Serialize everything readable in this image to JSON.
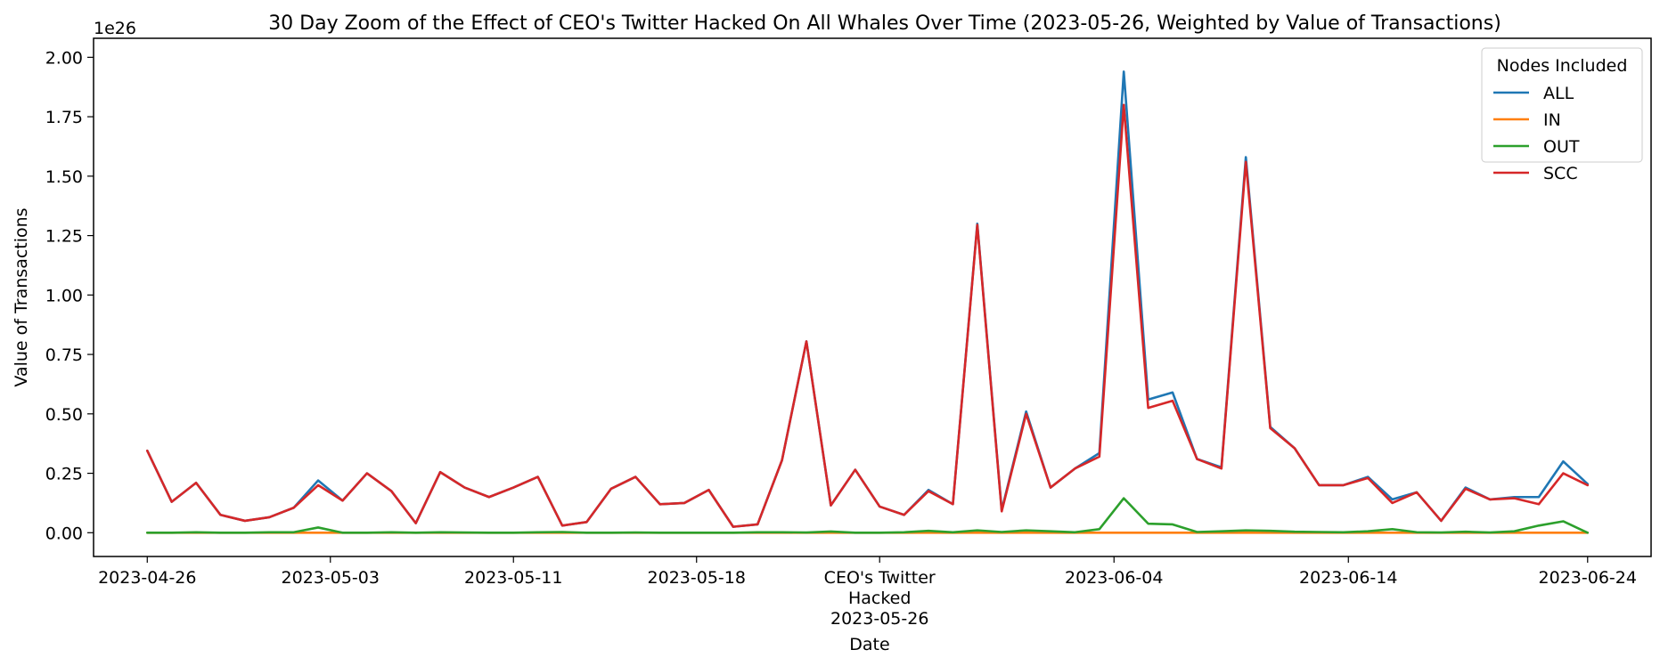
{
  "chart_data": {
    "type": "line",
    "title": "30 Day Zoom of the Effect of CEO's Twitter Hacked On All Whales Over Time (2023-05-26, Weighted by Value of Transactions)",
    "xlabel": "Date",
    "ylabel": "Value of Transactions",
    "y_scale_label": "1e26",
    "y_unit_note": "values in units of 1e26",
    "ylim": [
      -0.1,
      2.08
    ],
    "yticks": [
      0.0,
      0.25,
      0.5,
      0.75,
      1.0,
      1.25,
      1.5,
      1.75,
      2.0
    ],
    "ytick_labels": [
      "0.00",
      "0.25",
      "0.50",
      "0.75",
      "1.00",
      "1.25",
      "1.50",
      "1.75",
      "2.00"
    ],
    "x_start_date": "2023-04-26",
    "x_end_date": "2023-06-24",
    "xlim_days": [
      -2.2,
      61.6
    ],
    "xticks": [
      {
        "day": 0,
        "label": "2023-04-26"
      },
      {
        "day": 7.5,
        "label": "2023-05-03"
      },
      {
        "day": 15,
        "label": "2023-05-11"
      },
      {
        "day": 22.5,
        "label": "2023-05-18"
      },
      {
        "day": 30,
        "label": "CEO's Twitter\nHacked\n2023-05-26"
      },
      {
        "day": 39.6,
        "label": "2023-06-04"
      },
      {
        "day": 49.2,
        "label": "2023-06-14"
      },
      {
        "day": 59,
        "label": "2023-06-24"
      }
    ],
    "legend": {
      "title": "Nodes Included",
      "position": "top-right"
    },
    "series": [
      {
        "name": "ALL",
        "color": "#1f77b4",
        "values": [
          0.345,
          0.13,
          0.21,
          0.075,
          0.05,
          0.065,
          0.105,
          0.22,
          0.135,
          0.25,
          0.175,
          0.04,
          0.255,
          0.19,
          0.15,
          0.19,
          0.235,
          0.03,
          0.045,
          0.185,
          0.235,
          0.12,
          0.125,
          0.18,
          0.025,
          0.035,
          0.305,
          0.805,
          0.115,
          0.265,
          0.11,
          0.075,
          0.18,
          0.12,
          1.3,
          0.095,
          0.51,
          0.19,
          0.27,
          0.335,
          1.94,
          0.56,
          0.59,
          0.31,
          0.275,
          1.58,
          0.445,
          0.355,
          0.2,
          0.2,
          0.235,
          0.14,
          0.17,
          0.05,
          0.19,
          0.14,
          0.15,
          0.15,
          0.3,
          0.205
        ]
      },
      {
        "name": "IN",
        "color": "#ff7f0e",
        "values": [
          0.0,
          0.0,
          0.0,
          0.0,
          0.0,
          0.0,
          0.0,
          0.0,
          0.0,
          0.0,
          0.0,
          0.0,
          0.0,
          0.0,
          0.0,
          0.0,
          0.0,
          0.0,
          0.0,
          0.0,
          0.0,
          0.0,
          0.0,
          0.0,
          0.0,
          0.0,
          0.0,
          0.0,
          0.0,
          0.0,
          0.0,
          0.0,
          0.0,
          0.0,
          0.0,
          0.0,
          0.0,
          0.0,
          0.0,
          0.0,
          0.0,
          0.0,
          0.0,
          0.0,
          0.0,
          0.0,
          0.0,
          0.0,
          0.0,
          0.0,
          0.0,
          0.0,
          0.0,
          0.0,
          0.0,
          0.0,
          0.0,
          0.0,
          0.0,
          0.0
        ]
      },
      {
        "name": "OUT",
        "color": "#2ca02c",
        "values": [
          0.0,
          0.0,
          0.002,
          0.0,
          0.0,
          0.002,
          0.002,
          0.022,
          0.0,
          0.0,
          0.002,
          0.0,
          0.002,
          0.001,
          0.0,
          0.0,
          0.002,
          0.003,
          0.0,
          0.0,
          0.001,
          0.0,
          0.0,
          0.0,
          0.0,
          0.002,
          0.002,
          0.001,
          0.005,
          0.0,
          0.0,
          0.002,
          0.008,
          0.002,
          0.01,
          0.003,
          0.01,
          0.006,
          0.002,
          0.015,
          0.145,
          0.038,
          0.035,
          0.003,
          0.006,
          0.01,
          0.008,
          0.004,
          0.003,
          0.002,
          0.006,
          0.015,
          0.002,
          0.001,
          0.004,
          0.001,
          0.006,
          0.03,
          0.048,
          0.0
        ]
      },
      {
        "name": "SCC",
        "color": "#d62728",
        "values": [
          0.345,
          0.13,
          0.21,
          0.075,
          0.05,
          0.065,
          0.105,
          0.2,
          0.135,
          0.25,
          0.175,
          0.04,
          0.255,
          0.19,
          0.15,
          0.19,
          0.235,
          0.03,
          0.045,
          0.185,
          0.235,
          0.12,
          0.125,
          0.18,
          0.025,
          0.035,
          0.305,
          0.805,
          0.115,
          0.265,
          0.11,
          0.075,
          0.175,
          0.12,
          1.295,
          0.09,
          0.5,
          0.19,
          0.27,
          0.32,
          1.8,
          0.525,
          0.555,
          0.31,
          0.27,
          1.56,
          0.44,
          0.355,
          0.2,
          0.2,
          0.23,
          0.125,
          0.17,
          0.05,
          0.185,
          0.14,
          0.145,
          0.12,
          0.25,
          0.2
        ]
      }
    ]
  }
}
